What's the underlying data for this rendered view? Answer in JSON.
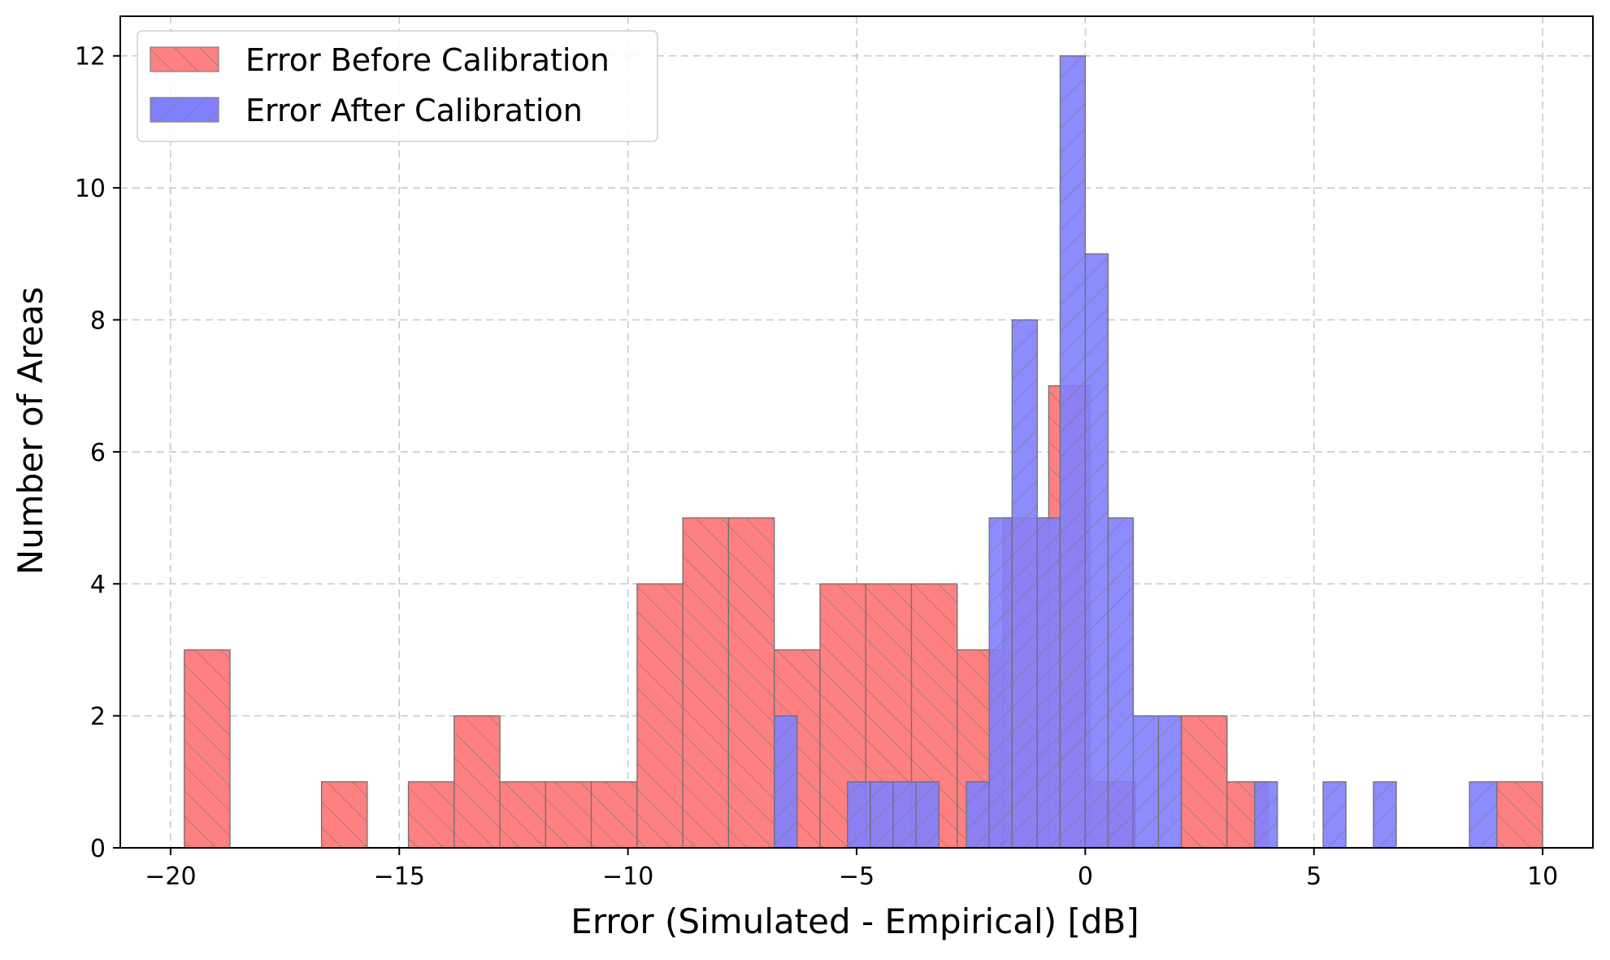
{
  "chart_data": {
    "type": "bar",
    "title": "",
    "xlabel": "Error (Simulated - Empirical) [dB]",
    "ylabel": "Number of Areas",
    "xlim": [
      -21.1,
      11.1
    ],
    "ylim": [
      0,
      12.6
    ],
    "xticks": [
      -20,
      -15,
      -10,
      -5,
      0,
      5,
      10
    ],
    "xtick_labels": [
      "−20",
      "−15",
      "−10",
      "−5",
      "0",
      "5",
      "10"
    ],
    "yticks": [
      0,
      2,
      4,
      6,
      8,
      10,
      12
    ],
    "ytick_labels": [
      "0",
      "2",
      "4",
      "6",
      "8",
      "10",
      "12"
    ],
    "grid": true,
    "legend_position": "top-left",
    "series": [
      {
        "name": "Error Before Calibration",
        "color": "#ff8080",
        "hatch": "forward-diagonal",
        "bins": [
          {
            "x0": -19.7,
            "x1": -18.7,
            "count": 3
          },
          {
            "x0": -16.7,
            "x1": -15.7,
            "count": 1
          },
          {
            "x0": -14.8,
            "x1": -13.8,
            "count": 1
          },
          {
            "x0": -13.8,
            "x1": -12.8,
            "count": 2
          },
          {
            "x0": -12.8,
            "x1": -11.8,
            "count": 1
          },
          {
            "x0": -11.8,
            "x1": -10.8,
            "count": 1
          },
          {
            "x0": -10.8,
            "x1": -9.8,
            "count": 1
          },
          {
            "x0": -9.8,
            "x1": -8.8,
            "count": 4
          },
          {
            "x0": -8.8,
            "x1": -7.8,
            "count": 5
          },
          {
            "x0": -7.8,
            "x1": -6.8,
            "count": 5
          },
          {
            "x0": -6.8,
            "x1": -5.8,
            "count": 3
          },
          {
            "x0": -5.8,
            "x1": -4.8,
            "count": 4
          },
          {
            "x0": -4.8,
            "x1": -3.8,
            "count": 4
          },
          {
            "x0": -3.8,
            "x1": -2.8,
            "count": 4
          },
          {
            "x0": -2.8,
            "x1": -1.8,
            "count": 3
          },
          {
            "x0": -1.8,
            "x1": -0.8,
            "count": 5
          },
          {
            "x0": -0.8,
            "x1": 0.1,
            "count": 7
          },
          {
            "x0": 0.1,
            "x1": 1.1,
            "count": 1
          },
          {
            "x0": 2.1,
            "x1": 3.1,
            "count": 2
          },
          {
            "x0": 3.1,
            "x1": 4.0,
            "count": 1
          },
          {
            "x0": 9.0,
            "x1": 10.0,
            "count": 1
          }
        ]
      },
      {
        "name": "Error After Calibration",
        "color": "#8080ff",
        "hatch": "backward-diagonal",
        "bins": [
          {
            "x0": -6.8,
            "x1": -6.3,
            "count": 2
          },
          {
            "x0": -5.2,
            "x1": -4.7,
            "count": 1
          },
          {
            "x0": -4.7,
            "x1": -4.2,
            "count": 1
          },
          {
            "x0": -4.2,
            "x1": -3.7,
            "count": 1
          },
          {
            "x0": -3.7,
            "x1": -3.2,
            "count": 1
          },
          {
            "x0": -2.6,
            "x1": -2.1,
            "count": 1
          },
          {
            "x0": -2.1,
            "x1": -1.6,
            "count": 5
          },
          {
            "x0": -1.6,
            "x1": -1.05,
            "count": 8
          },
          {
            "x0": -1.05,
            "x1": -0.55,
            "count": 5
          },
          {
            "x0": -0.55,
            "x1": 0.0,
            "count": 12
          },
          {
            "x0": 0.0,
            "x1": 0.5,
            "count": 9
          },
          {
            "x0": 0.5,
            "x1": 1.05,
            "count": 5
          },
          {
            "x0": 1.05,
            "x1": 1.6,
            "count": 2
          },
          {
            "x0": 1.6,
            "x1": 2.1,
            "count": 2
          },
          {
            "x0": 3.7,
            "x1": 4.2,
            "count": 1
          },
          {
            "x0": 5.2,
            "x1": 5.7,
            "count": 1
          },
          {
            "x0": 6.3,
            "x1": 6.8,
            "count": 1
          },
          {
            "x0": 8.4,
            "x1": 9.0,
            "count": 1
          }
        ]
      }
    ]
  }
}
